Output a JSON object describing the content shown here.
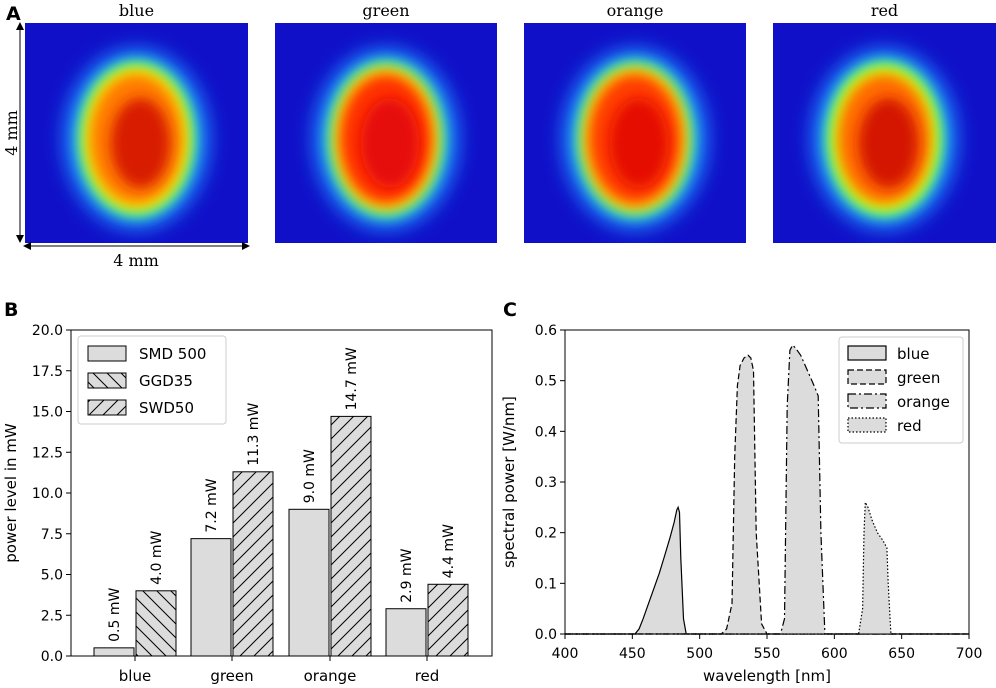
{
  "panel_labels": {
    "a": "A",
    "b": "B",
    "c": "C"
  },
  "heatmaps": {
    "panels": [
      {
        "title": "blue",
        "core": "#d81a05",
        "mid": "#ff7a00",
        "outer": "#f5e600"
      },
      {
        "title": "green",
        "core": "#e60c08",
        "mid": "#ff3200",
        "outer": "#ffd000"
      },
      {
        "title": "orange",
        "core": "#e51005",
        "mid": "#ff3c00",
        "outer": "#ffcc00"
      },
      {
        "title": "red",
        "core": "#d41805",
        "mid": "#ff6a00",
        "outer": "#e6f000"
      }
    ],
    "dim_vertical": "4 mm",
    "dim_horizontal": "4 mm"
  },
  "colors": {
    "bar_fill": "#dcdcdc",
    "bar_edge": "#000000",
    "area_fill": "#dcdcdc"
  },
  "chart_data": [
    {
      "type": "bar",
      "categories": [
        "blue",
        "green",
        "orange",
        "red"
      ],
      "series": [
        {
          "name": "SMD 500",
          "values": [
            0.5,
            7.2,
            9.0,
            2.9
          ],
          "hatch": "none"
        },
        {
          "name": "GGD35 / SWD50",
          "values": [
            4.0,
            11.3,
            14.7,
            4.4
          ],
          "hatch": "mixed"
        }
      ],
      "data_labels": [
        [
          "0.5 mW",
          "7.2 mW",
          "9.0 mW",
          "2.9 mW"
        ],
        [
          "4.0 mW",
          "11.3 mW",
          "14.7 mW",
          "4.4 mW"
        ]
      ],
      "bar_hatches": [
        "hatch-back",
        "hatch-fwd",
        "hatch-fwd",
        "hatch-fwd"
      ],
      "legend": [
        {
          "label": "SMD 500",
          "hatch": "none"
        },
        {
          "label": "GGD35",
          "hatch": "hatch-back"
        },
        {
          "label": "SWD50",
          "hatch": "hatch-fwd"
        }
      ],
      "title": "",
      "xlabel": "",
      "ylabel": "power level in mW",
      "ylim": [
        0,
        20
      ],
      "yticks": [
        0.0,
        2.5,
        5.0,
        7.5,
        10.0,
        12.5,
        15.0,
        17.5,
        20.0
      ],
      "ytick_labels": [
        "0.0",
        "2.5",
        "5.0",
        "7.5",
        "10.0",
        "12.5",
        "15.0",
        "17.5",
        "20.0"
      ]
    },
    {
      "type": "area",
      "title": "",
      "xlabel": "wavelength [nm]",
      "ylabel": "spectral power [W/nm]",
      "xlim": [
        400,
        700
      ],
      "ylim": [
        0,
        0.6
      ],
      "xticks": [
        400,
        450,
        500,
        550,
        600,
        650,
        700
      ],
      "yticks": [
        0.0,
        0.1,
        0.2,
        0.3,
        0.4,
        0.5,
        0.6
      ],
      "ytick_labels": [
        "0.0",
        "0.1",
        "0.2",
        "0.3",
        "0.4",
        "0.5",
        "0.6"
      ],
      "series": [
        {
          "name": "blue",
          "dash": "",
          "x": [
            400,
            452,
            455,
            458,
            462,
            466,
            470,
            474,
            478,
            481,
            483,
            484,
            485,
            486,
            488,
            490,
            700
          ],
          "y": [
            0,
            0,
            0.01,
            0.03,
            0.06,
            0.09,
            0.12,
            0.155,
            0.19,
            0.22,
            0.245,
            0.25,
            0.24,
            0.15,
            0.03,
            0,
            0
          ]
        },
        {
          "name": "green",
          "dash": "6,3",
          "x": [
            400,
            516,
            520,
            524,
            526,
            528,
            530,
            533,
            536,
            538,
            540,
            542,
            546,
            550,
            700
          ],
          "y": [
            0,
            0,
            0.01,
            0.06,
            0.35,
            0.49,
            0.53,
            0.545,
            0.55,
            0.545,
            0.52,
            0.2,
            0.02,
            0,
            0
          ]
        },
        {
          "name": "orange",
          "dash": "8,3,2,3",
          "x": [
            400,
            560,
            563,
            565,
            567,
            569,
            571,
            575,
            580,
            585,
            588,
            590,
            593,
            700
          ],
          "y": [
            0,
            0,
            0.03,
            0.45,
            0.56,
            0.57,
            0.565,
            0.55,
            0.52,
            0.49,
            0.47,
            0.2,
            0,
            0
          ]
        },
        {
          "name": "red",
          "dash": "1.5,2",
          "x": [
            400,
            618,
            621,
            622,
            623,
            625,
            628,
            632,
            636,
            638,
            639,
            640,
            642,
            700
          ],
          "y": [
            0,
            0,
            0.05,
            0.2,
            0.26,
            0.25,
            0.225,
            0.2,
            0.185,
            0.175,
            0.17,
            0.1,
            0,
            0
          ]
        }
      ],
      "legend": [
        "blue",
        "green",
        "orange",
        "red"
      ],
      "legend_position": "top-right"
    }
  ]
}
